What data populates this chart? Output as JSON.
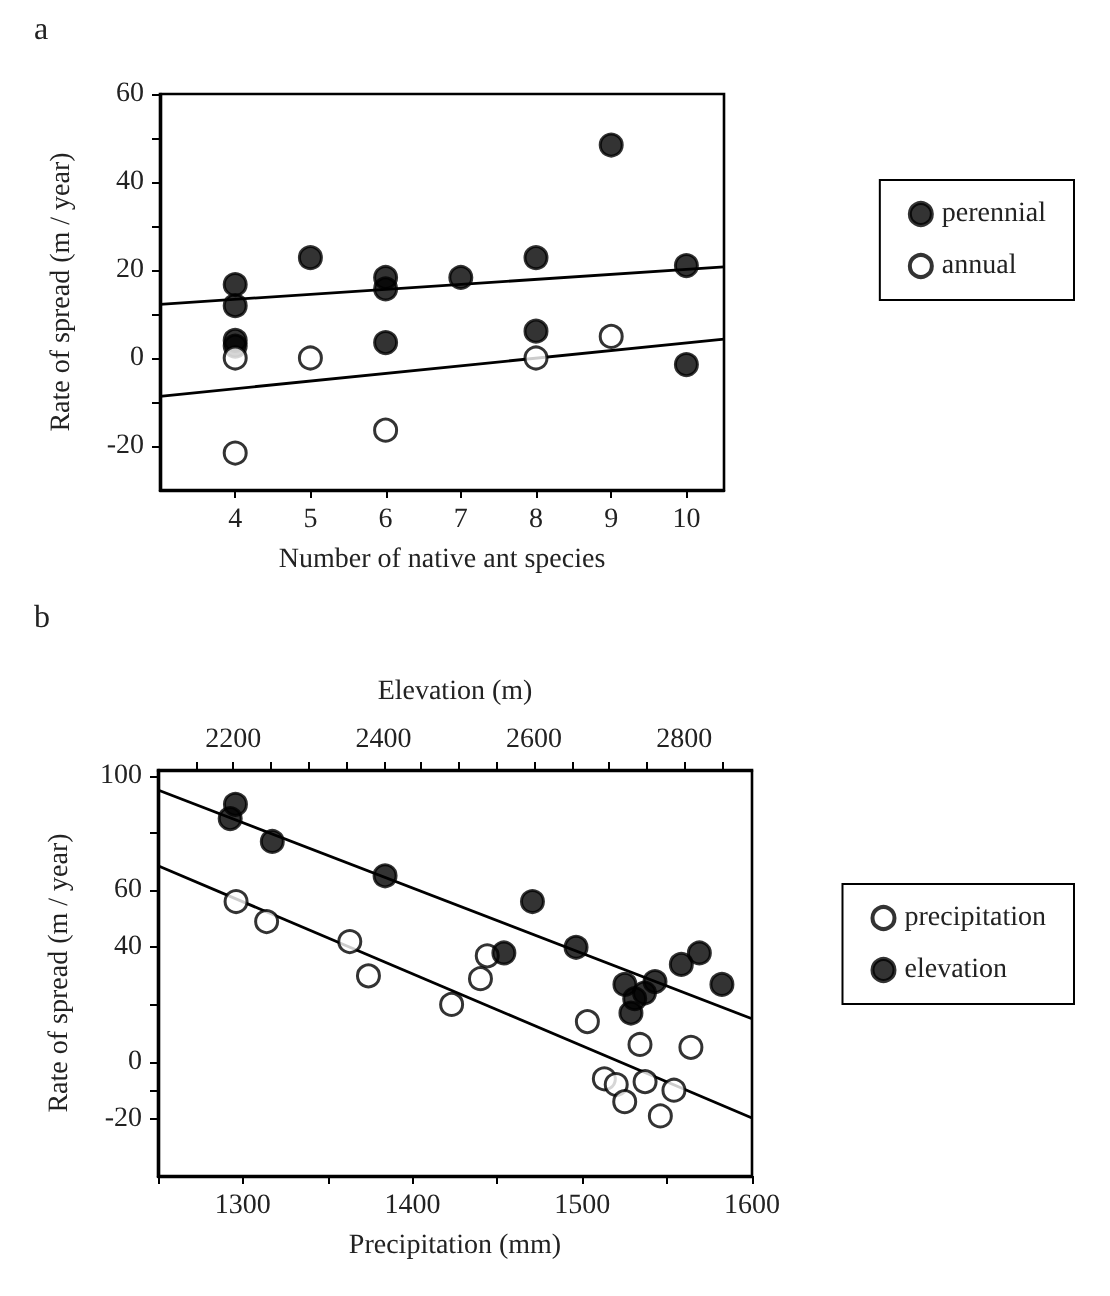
{
  "chart_data": [
    {
      "type": "scatter",
      "title": "a",
      "xlabel": "Number of native ant species",
      "ylabel": "Rate of spread (m / year)",
      "xlim": [
        3,
        10.5
      ],
      "xticks": [
        4,
        5,
        6,
        7,
        8,
        9,
        10
      ],
      "ylim": [
        -30,
        60
      ],
      "yticks": [
        -20,
        {
          "value": -10,
          "label": null
        },
        0,
        {
          "value": 10,
          "label": null
        },
        20,
        {
          "value": 30,
          "label": null
        },
        40,
        {
          "value": 50,
          "label": null
        },
        60
      ],
      "grid": false,
      "legend": "right",
      "marker": "circle",
      "series": [
        {
          "name": "perennial",
          "color": "#000000",
          "x": [
            4,
            4,
            4,
            4,
            5,
            6,
            6,
            6,
            7,
            8,
            8,
            9,
            10,
            10
          ],
          "values": [
            16.7,
            11.9,
            4,
            2.7,
            22.8,
            18.3,
            15.7,
            3.5,
            18.3,
            22.8,
            6.1,
            48.4,
            21,
            -1.5
          ]
        },
        {
          "name": "annual",
          "color": "#ffffff",
          "x": [
            4,
            4,
            5,
            6,
            8,
            9
          ],
          "values": [
            0,
            -21.6,
            0,
            -16.4,
            0,
            4.9
          ]
        },
        {
          "type": "line",
          "color": "#000000",
          "marker": "none",
          "x": [
            3,
            10.5
          ],
          "values": [
            12.2,
            20.7
          ]
        },
        {
          "type": "line",
          "color": "#000000",
          "marker": "none",
          "x": [
            3,
            10.5
          ],
          "values": [
            -8.7,
            4.3
          ]
        }
      ]
    },
    {
      "type": "scatter",
      "title": "b",
      "xlabel": "Precipitation (mm)",
      "x2label": "Elevation (m)",
      "ylabel": "Rate of spread (m / year)",
      "xlim": [
        1250,
        1600
      ],
      "xticks": [
        {
          "value": 1250,
          "label": null
        },
        1300,
        {
          "value": 1350,
          "label": null
        },
        1400,
        {
          "value": 1450,
          "label": null
        },
        1500,
        {
          "value": 1550,
          "label": null
        },
        1600
      ],
      "x2lim": [
        2100,
        2890
      ],
      "x2ticks": [
        {
          "value": 2150,
          "label": null
        },
        2200,
        {
          "value": 2250,
          "label": null
        },
        {
          "value": 2300,
          "label": null
        },
        {
          "value": 2350,
          "label": null
        },
        2400,
        {
          "value": 2450,
          "label": null
        },
        {
          "value": 2500,
          "label": null
        },
        {
          "value": 2550,
          "label": null
        },
        2600,
        {
          "value": 2650,
          "label": null
        },
        {
          "value": 2700,
          "label": null
        },
        {
          "value": 2750,
          "label": null
        },
        2800,
        {
          "value": 2850,
          "label": null
        }
      ],
      "ylim": [
        -40,
        102
      ],
      "yticks": [
        -20,
        {
          "value": -10,
          "label": null
        },
        0,
        {
          "value": 20,
          "label": null
        },
        40,
        60,
        {
          "value": 80,
          "label": null
        },
        100
      ],
      "grid": false,
      "legend": "right",
      "marker": "circle",
      "series": [
        {
          "name": "precipitation",
          "color": "#ffffff",
          "x": [
            1296,
            1314,
            1363,
            1374,
            1423,
            1440,
            1444,
            1503,
            1534,
            1564,
            1513,
            1520,
            1525,
            1537,
            1554,
            1546
          ],
          "values": [
            56,
            49,
            42,
            30,
            20,
            29,
            37,
            14,
            6,
            5,
            -6,
            -8,
            -14,
            -7,
            -10,
            -19
          ]
        },
        {
          "name": "elevation",
          "color": "#000000",
          "axis": "x2",
          "x": [
            2203,
            2196,
            2252,
            2402,
            2598,
            2560,
            2656,
            2721,
            2729,
            2734,
            2747,
            2761,
            2796,
            2820,
            2850
          ],
          "values": [
            90,
            85,
            77,
            65,
            56,
            38,
            40,
            27,
            17,
            22,
            24,
            28,
            34,
            38,
            27
          ]
        },
        {
          "type": "line",
          "color": "#000000",
          "marker": "none",
          "axis": "x2",
          "x": [
            2100,
            2890
          ],
          "values": [
            95,
            15
          ]
        },
        {
          "type": "line",
          "color": "#000000",
          "marker": "none",
          "x": [
            1250,
            1600
          ],
          "values": [
            68.5,
            -19.7
          ]
        }
      ]
    }
  ]
}
